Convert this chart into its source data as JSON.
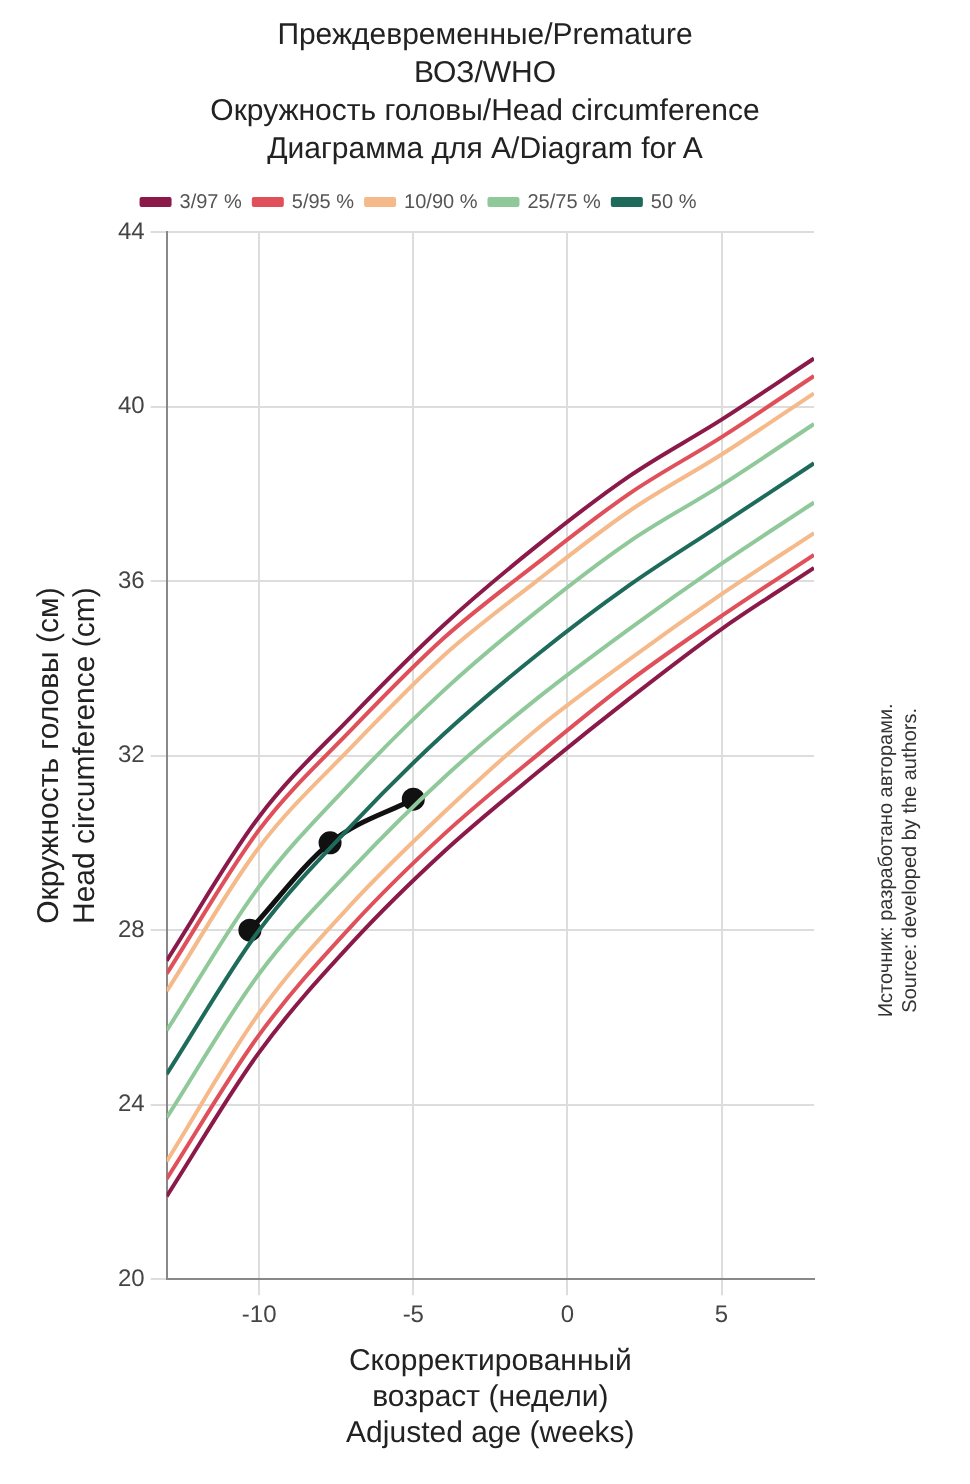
{
  "chart_data": {
    "type": "line",
    "title": "Преждевременные/Premature\nВОЗ/WHO\nОкружность головы/Head circumference\nДиаграмма для A/Diagram for A",
    "xlabel": "Скорректированный\nвозраст (недели)\nAdjusted age (weeks)",
    "ylabel": "Окружность головы (см)\nHead circumference (cm)",
    "annotations": [
      "Источник: разработано авторами.\nSource: developed by the authors."
    ],
    "x": [
      -13,
      -10,
      -7,
      -4,
      -1,
      2,
      5,
      8
    ],
    "series": [
      {
        "name": "3/97 %",
        "color": "#8b1a4a",
        "values": [
          27.3,
          30.6,
          32.9,
          35.0,
          36.8,
          38.4,
          39.7,
          41.1
        ]
      },
      {
        "name": "5/95 %",
        "color": "#e0505a",
        "values": [
          27.0,
          30.3,
          32.6,
          34.7,
          36.4,
          38.0,
          39.3,
          40.7
        ]
      },
      {
        "name": "10/90 %",
        "color": "#f5b98a",
        "values": [
          26.6,
          29.9,
          32.2,
          34.3,
          36.0,
          37.6,
          38.9,
          40.3
        ]
      },
      {
        "name": "25/75 %",
        "color": "#8fc99a",
        "values": [
          25.7,
          29.0,
          31.4,
          33.5,
          35.3,
          36.9,
          38.2,
          39.6
        ]
      },
      {
        "name": "50 %",
        "color": "#1e6b5c",
        "values": [
          24.7,
          28.0,
          30.4,
          32.5,
          34.3,
          35.9,
          37.3,
          38.7
        ]
      },
      {
        "color": "#8fc99a",
        "values": [
          23.7,
          27.0,
          29.4,
          31.5,
          33.3,
          34.9,
          36.4,
          37.8
        ]
      },
      {
        "color": "#f5b98a",
        "values": [
          22.7,
          26.1,
          28.6,
          30.7,
          32.6,
          34.2,
          35.7,
          37.1
        ]
      },
      {
        "color": "#e0505a",
        "values": [
          22.3,
          25.6,
          28.1,
          30.2,
          32.0,
          33.7,
          35.2,
          36.6
        ]
      },
      {
        "color": "#8b1a4a",
        "values": [
          21.9,
          25.2,
          27.7,
          29.8,
          31.6,
          33.3,
          34.9,
          36.3
        ]
      },
      {
        "color": "#111111",
        "x": [
          -10.3,
          -7.7,
          -5
        ],
        "values": [
          28,
          30,
          31
        ],
        "marker": "circle"
      }
    ],
    "xlim": [
      -13,
      8
    ],
    "xticks": [
      -10,
      -5,
      0,
      5
    ],
    "ylim": [
      20,
      44
    ],
    "yticks": [
      20,
      24,
      28,
      32,
      36,
      40,
      44
    ],
    "grid": true,
    "legend": "top",
    "marker": "none"
  }
}
